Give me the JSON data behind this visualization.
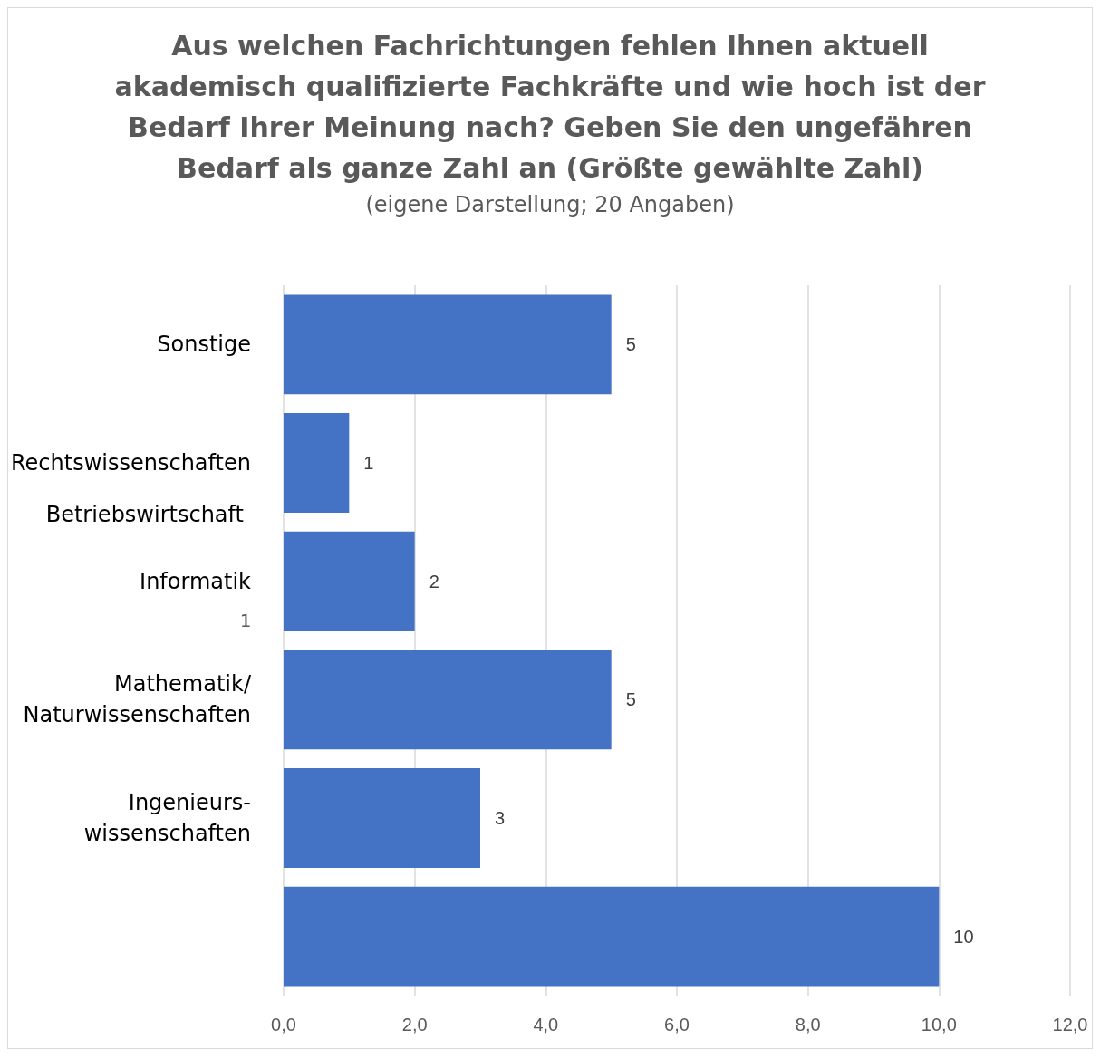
{
  "chart_data": {
    "type": "bar",
    "orientation": "horizontal",
    "title": "Aus welchen Fachrichtungen fehlen Ihnen aktuell\nakademisch qualifizierte Fachkräfte und wie hoch ist der\nBedarf Ihrer Meinung nach? Geben Sie den ungefähren\nBedarf als ganze Zahl an (Größte gewählte Zahl)",
    "subtitle": "(eigene Darstellung; 20 Angaben)",
    "categories": [
      "Sonstige",
      "Rechtswissenschaften",
      "Informatik",
      "Mathematik/\nNaturwissenschaften",
      "Ingenieurs-\nwissenschaften",
      null
    ],
    "values": [
      5,
      1,
      2,
      5,
      3,
      10
    ],
    "color": "#4472c4",
    "data_labels": true,
    "xlim": [
      0,
      12
    ],
    "xticks": [
      {
        "value": 0,
        "label": "0,0"
      },
      {
        "value": 2,
        "label": "2,0"
      },
      {
        "value": 4,
        "label": "4,0"
      },
      {
        "value": 6,
        "label": "6,0"
      },
      {
        "value": 8,
        "label": "8,0"
      },
      {
        "value": 10,
        "label": "10,0"
      },
      {
        "value": 12,
        "label": "12,0"
      }
    ],
    "grid": "x",
    "annotations": [
      "Betriebswirtschaft",
      "1"
    ]
  }
}
